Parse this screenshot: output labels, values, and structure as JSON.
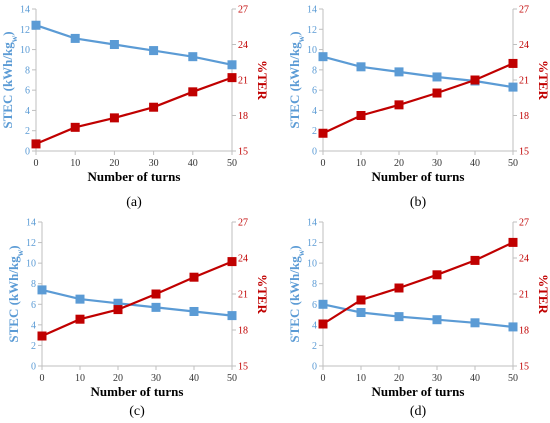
{
  "chart_data": [
    {
      "type": "line",
      "panel_label": "(a)",
      "x": [
        0,
        10,
        20,
        30,
        40,
        50
      ],
      "xlabel": "Number of turns",
      "xticks": [
        "0",
        "10",
        "20",
        "30",
        "40",
        "50"
      ],
      "xlim": [
        0,
        50
      ],
      "ylabel_left": "STEC (kWh/kg",
      "ylabel_left_sub": "w",
      "ylabel_left_end": ")",
      "ylabel_right": "%TER",
      "ylim_left": [
        0,
        14
      ],
      "yticks_left": [
        "0",
        "2",
        "4",
        "6",
        "8",
        "10",
        "12",
        "14"
      ],
      "ylim_right": [
        15,
        27
      ],
      "yticks_right": [
        "15",
        "18",
        "21",
        "24",
        "27"
      ],
      "series": [
        {
          "axis": "left",
          "color": "#5b9bd5",
          "marker": "square",
          "values": [
            12.4,
            11.1,
            10.5,
            9.9,
            9.3,
            8.5
          ]
        },
        {
          "axis": "right",
          "color": "#c00000",
          "marker": "square",
          "values": [
            15.6,
            17.0,
            17.8,
            18.7,
            20.0,
            21.2
          ]
        }
      ]
    },
    {
      "type": "line",
      "panel_label": "(b)",
      "x": [
        0,
        10,
        20,
        30,
        40,
        50
      ],
      "xlabel": "Number of turns",
      "xticks": [
        "0",
        "10",
        "20",
        "30",
        "40",
        "50"
      ],
      "xlim": [
        0,
        50
      ],
      "ylabel_left": "STEC (kWh/kg",
      "ylabel_left_sub": "w",
      "ylabel_left_end": ")",
      "ylabel_right": "%TER",
      "ylim_left": [
        0,
        14
      ],
      "yticks_left": [
        "0",
        "2",
        "4",
        "6",
        "8",
        "10",
        "12",
        "14"
      ],
      "ylim_right": [
        15,
        27
      ],
      "yticks_right": [
        "15",
        "18",
        "21",
        "24",
        "27"
      ],
      "series": [
        {
          "axis": "left",
          "color": "#5b9bd5",
          "marker": "square",
          "values": [
            9.3,
            8.3,
            7.8,
            7.3,
            6.9,
            6.3
          ]
        },
        {
          "axis": "right",
          "color": "#c00000",
          "marker": "square",
          "values": [
            16.5,
            18.0,
            18.9,
            19.9,
            21.0,
            22.4
          ]
        }
      ]
    },
    {
      "type": "line",
      "panel_label": "(c)",
      "x": [
        0,
        10,
        20,
        30,
        40,
        50
      ],
      "xlabel": "Number of turns",
      "xticks": [
        "0",
        "10",
        "20",
        "30",
        "40",
        "50"
      ],
      "xlim": [
        0,
        50
      ],
      "ylabel_left": "STEC (kWh/kg",
      "ylabel_left_sub": "w",
      "ylabel_left_end": ")",
      "ylabel_right": "%TER",
      "ylim_left": [
        0,
        14
      ],
      "yticks_left": [
        "0",
        "2",
        "4",
        "6",
        "8",
        "10",
        "12",
        "14"
      ],
      "ylim_right": [
        15,
        27
      ],
      "yticks_right": [
        "15",
        "18",
        "21",
        "24",
        "27"
      ],
      "series": [
        {
          "axis": "left",
          "color": "#5b9bd5",
          "marker": "square",
          "values": [
            7.4,
            6.5,
            6.1,
            5.7,
            5.3,
            4.9
          ]
        },
        {
          "axis": "right",
          "color": "#c00000",
          "marker": "square",
          "values": [
            17.5,
            18.9,
            19.7,
            21.0,
            22.4,
            23.7
          ]
        }
      ]
    },
    {
      "type": "line",
      "panel_label": "(d)",
      "x": [
        0,
        10,
        20,
        30,
        40,
        50
      ],
      "xlabel": "Number of turns",
      "xticks": [
        "0",
        "10",
        "20",
        "30",
        "40",
        "50"
      ],
      "xlim": [
        0,
        50
      ],
      "ylabel_left": "STEC (kWh/kg",
      "ylabel_left_sub": "w",
      "ylabel_left_end": ")",
      "ylabel_right": "%TER",
      "ylim_left": [
        0,
        14
      ],
      "yticks_left": [
        "0",
        "2",
        "4",
        "6",
        "8",
        "10",
        "12",
        "14"
      ],
      "ylim_right": [
        15,
        27
      ],
      "yticks_right": [
        "15",
        "18",
        "21",
        "24",
        "27"
      ],
      "series": [
        {
          "axis": "left",
          "color": "#5b9bd5",
          "marker": "square",
          "values": [
            6.0,
            5.2,
            4.8,
            4.5,
            4.2,
            3.8
          ]
        },
        {
          "axis": "right",
          "color": "#c00000",
          "marker": "square",
          "values": [
            18.5,
            20.5,
            21.5,
            22.6,
            23.8,
            25.3
          ]
        }
      ]
    }
  ]
}
